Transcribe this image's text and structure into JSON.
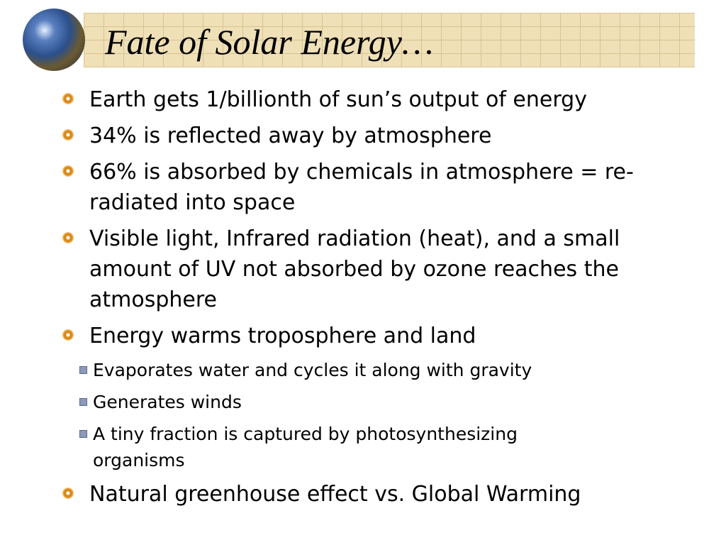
{
  "title": "Fate of Solar Energy…",
  "bullets": [
    {
      "text": "Earth gets 1/billionth of sun’s output of energy"
    },
    {
      "text": "34% is reflected away by atmosphere"
    },
    {
      "text": "66% is absorbed by chemicals in atmosphere = re-radiated into space"
    },
    {
      "text": "Visible light, Infrared radiation (heat), and a small amount of UV not absorbed by ozone reaches the atmosphere"
    },
    {
      "text": "Energy warms troposphere and land",
      "sub": [
        "Evaporates water and cycles it along with gravity",
        "Generates winds",
        "A tiny fraction is captured by photosynthesizing organisms"
      ]
    },
    {
      "text": "Natural greenhouse effect vs. Global Warming"
    }
  ]
}
